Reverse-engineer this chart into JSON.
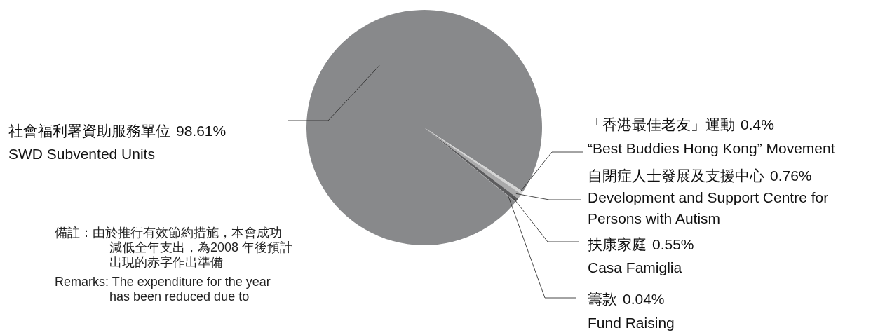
{
  "chart_data": {
    "type": "pie",
    "categories": [
      "社會福利署資助服務單位\nSWD Subvented Units",
      "「香港最佳老友」運動\n“Best Buddies Hong Kong” Movement",
      "自閉症人士發展及支援中心\nDevelopment and Support Centre for Persons with Autism",
      "扶康家庭\nCasa Famiglia",
      "籌款\nFund Raising"
    ],
    "values": [
      98.61,
      0.4,
      0.76,
      0.55,
      0.04
    ],
    "colors": [
      "#88898b",
      "#d4d4d4",
      "#a9a9aa",
      "#5c5c5e",
      "#9c9c9e"
    ],
    "value_labels": [
      "98.61%",
      "0.4%",
      "0.76%",
      "0.55%",
      "0.04%"
    ],
    "annotations": [
      "備註：由於推行有效節約措施，本會成功減低全年支出，為2008 年後預計出現的赤字作出準備",
      "Remarks: The expenditure for the year has been reduced due to"
    ]
  }
}
